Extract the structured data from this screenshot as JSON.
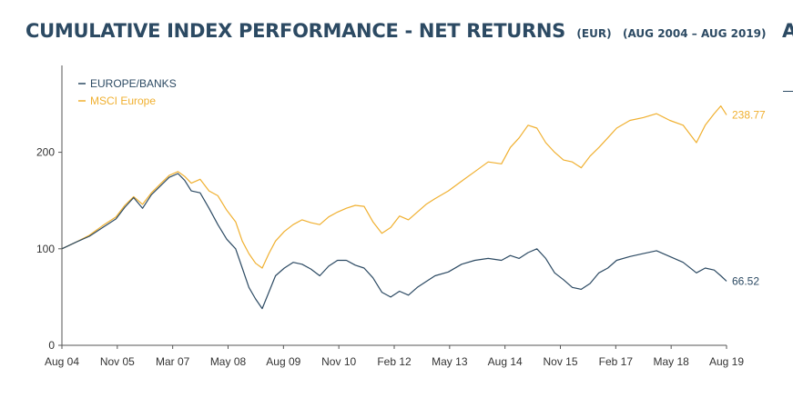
{
  "title": {
    "main": "CUMULATIVE INDEX PERFORMANCE - NET RETURNS",
    "unit": "(EUR)",
    "range": "(AUG 2004 – AUG 2019)",
    "cut_letter": "A"
  },
  "chart_data": {
    "type": "line",
    "x_tick_labels": [
      "Aug 04",
      "Nov 05",
      "Mar 07",
      "May 08",
      "Aug 09",
      "Nov 10",
      "Feb 12",
      "May 13",
      "Aug 14",
      "Nov 15",
      "Feb 17",
      "May 18",
      "Aug 19"
    ],
    "y_ticks": [
      0,
      100,
      200
    ],
    "ylim": [
      0,
      290
    ],
    "xlim": [
      2004.58,
      2019.58
    ],
    "grid": false,
    "legend_position": "top-left",
    "series": [
      {
        "name": "EUROPE/BANKS",
        "color": "#2c4a63",
        "end_label": "66.52",
        "points": [
          [
            2004.58,
            100
          ],
          [
            2004.9,
            107
          ],
          [
            2005.2,
            113
          ],
          [
            2005.5,
            122
          ],
          [
            2005.8,
            131
          ],
          [
            2006.0,
            143
          ],
          [
            2006.2,
            153
          ],
          [
            2006.4,
            142
          ],
          [
            2006.6,
            156
          ],
          [
            2006.8,
            165
          ],
          [
            2007.0,
            174
          ],
          [
            2007.2,
            178
          ],
          [
            2007.35,
            171
          ],
          [
            2007.5,
            160
          ],
          [
            2007.7,
            158
          ],
          [
            2007.9,
            142
          ],
          [
            2008.1,
            125
          ],
          [
            2008.3,
            110
          ],
          [
            2008.5,
            100
          ],
          [
            2008.65,
            80
          ],
          [
            2008.8,
            60
          ],
          [
            2008.95,
            48
          ],
          [
            2009.1,
            38
          ],
          [
            2009.25,
            55
          ],
          [
            2009.4,
            72
          ],
          [
            2009.6,
            80
          ],
          [
            2009.8,
            86
          ],
          [
            2010.0,
            84
          ],
          [
            2010.2,
            79
          ],
          [
            2010.4,
            72
          ],
          [
            2010.6,
            82
          ],
          [
            2010.8,
            88
          ],
          [
            2011.0,
            88
          ],
          [
            2011.2,
            83
          ],
          [
            2011.4,
            80
          ],
          [
            2011.6,
            70
          ],
          [
            2011.8,
            55
          ],
          [
            2012.0,
            50
          ],
          [
            2012.2,
            56
          ],
          [
            2012.4,
            52
          ],
          [
            2012.6,
            60
          ],
          [
            2012.8,
            66
          ],
          [
            2013.0,
            72
          ],
          [
            2013.3,
            76
          ],
          [
            2013.6,
            84
          ],
          [
            2013.9,
            88
          ],
          [
            2014.2,
            90
          ],
          [
            2014.5,
            88
          ],
          [
            2014.7,
            93
          ],
          [
            2014.9,
            90
          ],
          [
            2015.1,
            96
          ],
          [
            2015.3,
            100
          ],
          [
            2015.5,
            90
          ],
          [
            2015.7,
            75
          ],
          [
            2015.9,
            68
          ],
          [
            2016.1,
            60
          ],
          [
            2016.3,
            58
          ],
          [
            2016.5,
            64
          ],
          [
            2016.7,
            75
          ],
          [
            2016.9,
            80
          ],
          [
            2017.1,
            88
          ],
          [
            2017.4,
            92
          ],
          [
            2017.7,
            95
          ],
          [
            2018.0,
            98
          ],
          [
            2018.3,
            92
          ],
          [
            2018.6,
            86
          ],
          [
            2018.9,
            75
          ],
          [
            2019.1,
            80
          ],
          [
            2019.3,
            78
          ],
          [
            2019.45,
            72
          ],
          [
            2019.58,
            66.52
          ]
        ]
      },
      {
        "name": "MSCI Europe",
        "color": "#f0b030",
        "end_label": "238.77",
        "points": [
          [
            2004.58,
            100
          ],
          [
            2004.9,
            107
          ],
          [
            2005.2,
            114
          ],
          [
            2005.5,
            124
          ],
          [
            2005.8,
            133
          ],
          [
            2006.0,
            145
          ],
          [
            2006.2,
            154
          ],
          [
            2006.4,
            146
          ],
          [
            2006.6,
            158
          ],
          [
            2006.8,
            167
          ],
          [
            2007.0,
            176
          ],
          [
            2007.2,
            180
          ],
          [
            2007.35,
            175
          ],
          [
            2007.5,
            168
          ],
          [
            2007.7,
            172
          ],
          [
            2007.9,
            160
          ],
          [
            2008.1,
            155
          ],
          [
            2008.3,
            140
          ],
          [
            2008.5,
            128
          ],
          [
            2008.65,
            108
          ],
          [
            2008.8,
            95
          ],
          [
            2008.95,
            85
          ],
          [
            2009.1,
            80
          ],
          [
            2009.25,
            95
          ],
          [
            2009.4,
            108
          ],
          [
            2009.6,
            118
          ],
          [
            2009.8,
            125
          ],
          [
            2010.0,
            130
          ],
          [
            2010.2,
            127
          ],
          [
            2010.4,
            125
          ],
          [
            2010.6,
            133
          ],
          [
            2010.8,
            138
          ],
          [
            2011.0,
            142
          ],
          [
            2011.2,
            145
          ],
          [
            2011.4,
            144
          ],
          [
            2011.6,
            128
          ],
          [
            2011.8,
            116
          ],
          [
            2012.0,
            122
          ],
          [
            2012.2,
            134
          ],
          [
            2012.4,
            130
          ],
          [
            2012.6,
            138
          ],
          [
            2012.8,
            146
          ],
          [
            2013.0,
            152
          ],
          [
            2013.3,
            160
          ],
          [
            2013.6,
            170
          ],
          [
            2013.9,
            180
          ],
          [
            2014.2,
            190
          ],
          [
            2014.5,
            188
          ],
          [
            2014.7,
            205
          ],
          [
            2014.9,
            215
          ],
          [
            2015.1,
            228
          ],
          [
            2015.3,
            225
          ],
          [
            2015.5,
            210
          ],
          [
            2015.7,
            200
          ],
          [
            2015.9,
            192
          ],
          [
            2016.1,
            190
          ],
          [
            2016.3,
            184
          ],
          [
            2016.5,
            196
          ],
          [
            2016.7,
            205
          ],
          [
            2016.9,
            215
          ],
          [
            2017.1,
            225
          ],
          [
            2017.4,
            233
          ],
          [
            2017.7,
            236
          ],
          [
            2018.0,
            240
          ],
          [
            2018.3,
            233
          ],
          [
            2018.6,
            228
          ],
          [
            2018.9,
            210
          ],
          [
            2019.1,
            228
          ],
          [
            2019.3,
            240
          ],
          [
            2019.45,
            248
          ],
          [
            2019.58,
            238.77
          ]
        ]
      }
    ]
  }
}
